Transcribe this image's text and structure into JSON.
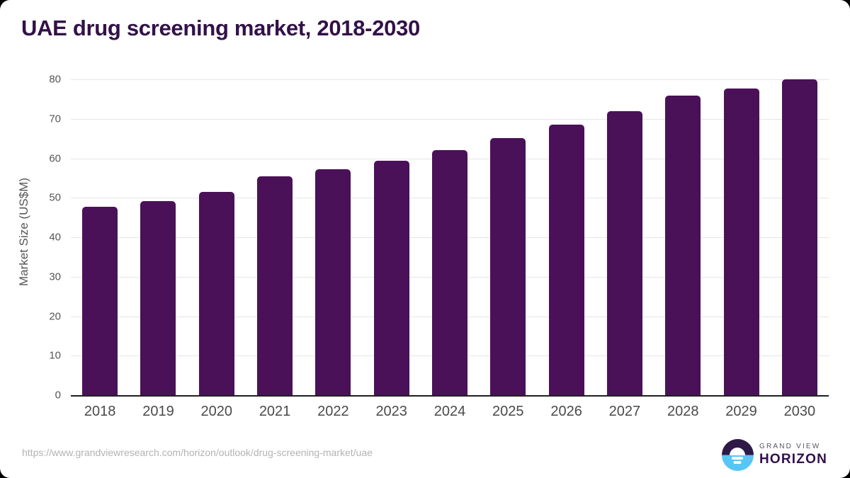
{
  "chart_data": {
    "type": "bar",
    "title": "UAE drug screening market, 2018-2030",
    "categories": [
      "2018",
      "2019",
      "2020",
      "2021",
      "2022",
      "2023",
      "2024",
      "2025",
      "2026",
      "2027",
      "2028",
      "2029",
      "2030"
    ],
    "values": [
      47.7,
      49.1,
      51.4,
      55.4,
      57.3,
      59.3,
      62.1,
      65.1,
      68.5,
      71.9,
      75.8,
      77.7,
      80.0
    ],
    "xlabel": "",
    "ylabel": "Market Size (US$M)",
    "ylim": [
      0,
      80
    ],
    "yticks": [
      0,
      10,
      20,
      30,
      40,
      50,
      60,
      70,
      80
    ],
    "grid": true,
    "legend": false,
    "bar_color": "#4a1158"
  },
  "colors": {
    "title_text": "#321148",
    "bar": "#4a1158",
    "gridline": "#e5e5e5",
    "axis_line": "#1f1f1f",
    "tick_text": "#565656",
    "source_text": "#b3b3b3",
    "logo_dark": "#2d1a47",
    "logo_blue": "#56c6f4",
    "logo_horizon_text": "#33104d"
  },
  "footer": {
    "source_url": "https://www.grandviewresearch.com/horizon/outlook/drug-screening-market/uae",
    "logo": {
      "top_text": "GRAND VIEW",
      "bottom_text": "HORIZON"
    }
  }
}
